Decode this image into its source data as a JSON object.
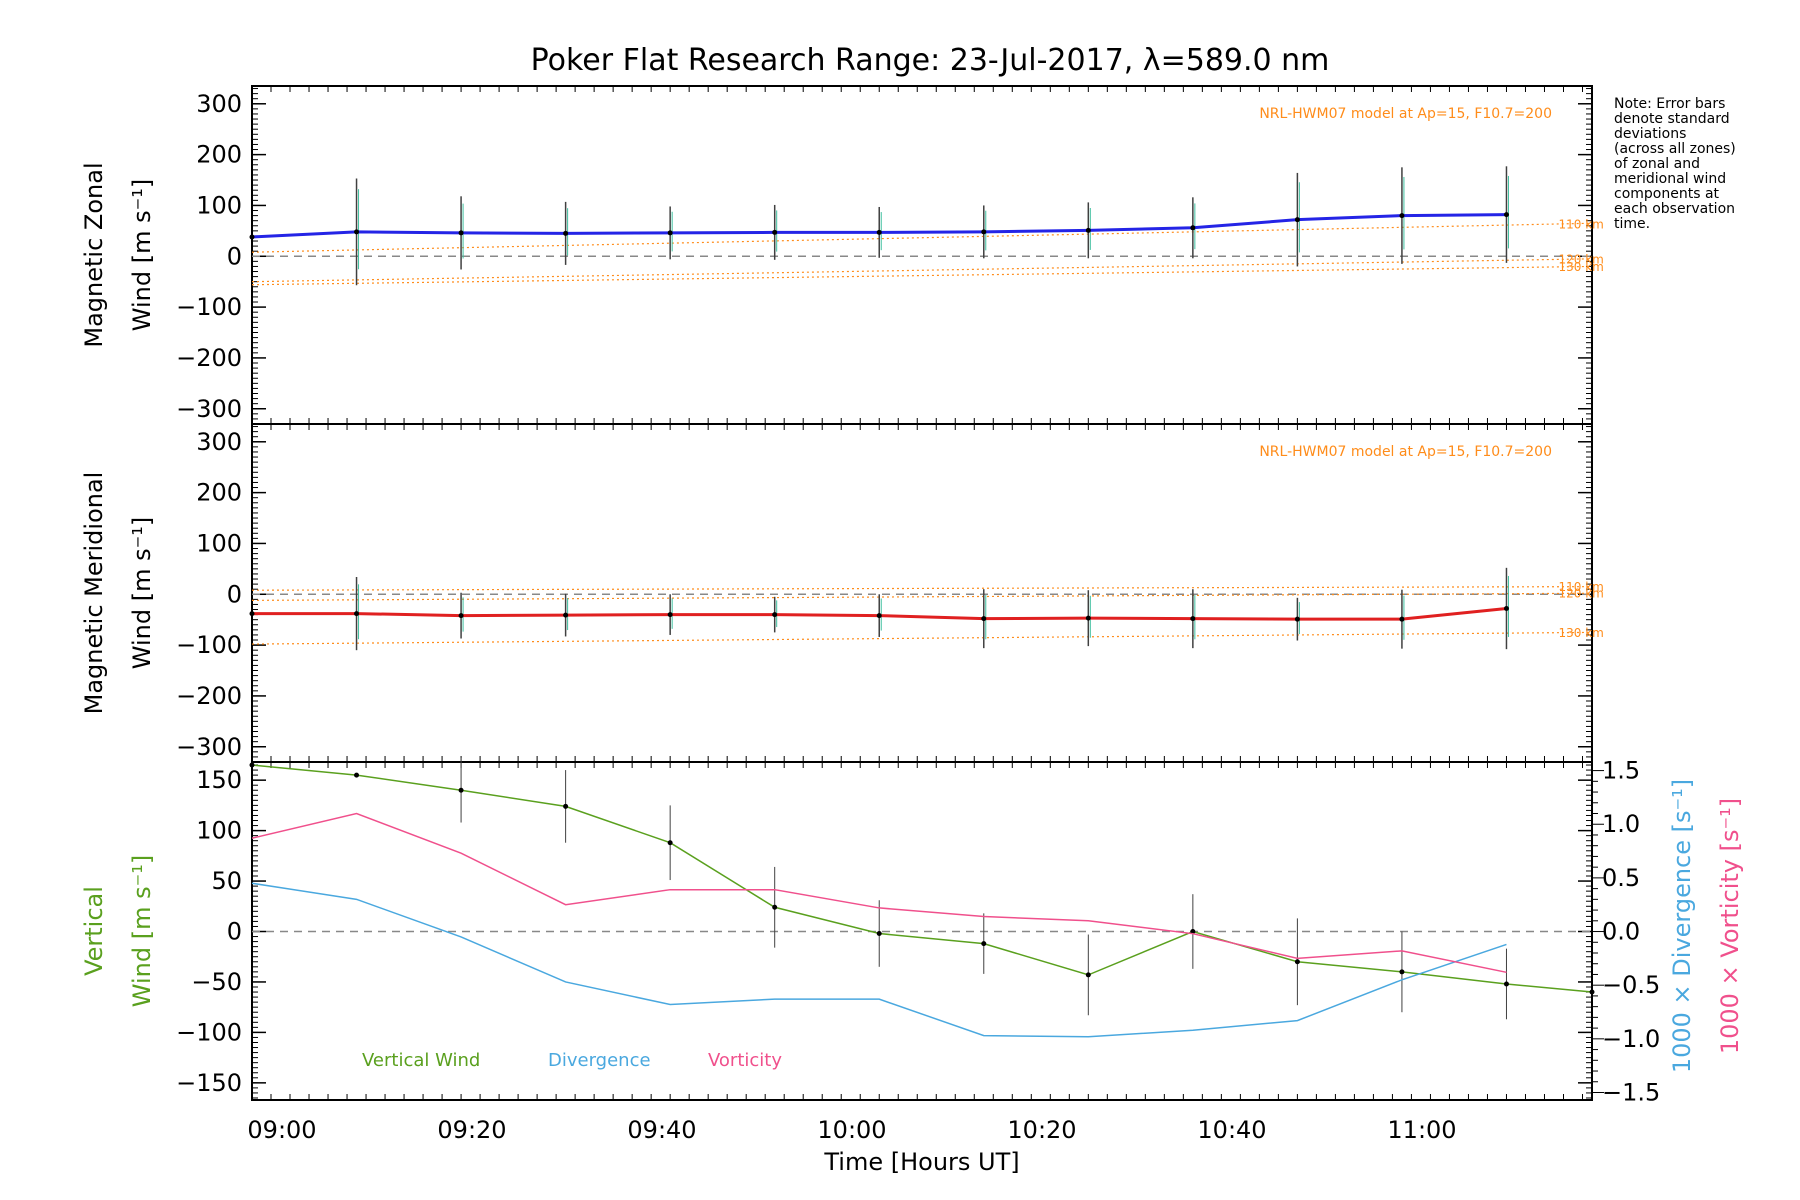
{
  "title": "Poker Flat Research Range: 23-Jul-2017, λ=589.0 nm",
  "x_axis": {
    "label": "Time [Hours UT]",
    "ticks": [
      "09:00",
      "09:20",
      "09:40",
      "10:00",
      "10:20",
      "10:40",
      "11:00"
    ]
  },
  "note": [
    "Note: Error bars",
    "denote standard",
    "deviations",
    "(across all zones)",
    "of zonal and",
    "meridional wind",
    "components at",
    "each observation",
    "time."
  ],
  "model_note": "NRL-HWM07 model at Ap=15, F10.7=200",
  "panels": {
    "zonal": {
      "ylabel_top": "Magnetic Zonal",
      "ylabel_bottom": "Wind [m s⁻¹]"
    },
    "meridional": {
      "ylabel_top": "Magnetic Meridional",
      "ylabel_bottom": "Wind [m s⁻¹]"
    },
    "vertical": {
      "ylabel_top": "Vertical",
      "ylabel_bottom": "Wind [m s⁻¹]",
      "right_label_divergence": "1000 × Divergence [s⁻¹]",
      "right_label_vorticity": "1000 × Vorticity [s⁻¹]",
      "legend": [
        "Vertical Wind",
        "Divergence",
        "Vorticity"
      ]
    }
  },
  "colors": {
    "zonal": "#2424e6",
    "meridional": "#e02020",
    "model": "#ff8c1a",
    "vertical": "#5aa01e",
    "divergence": "#4aa8df",
    "vorticity": "#f0508c",
    "errorbar": "#404040",
    "zero": "#888888"
  },
  "chart_data": [
    {
      "type": "line",
      "title": "Poker Flat Research Range: 23-Jul-2017, λ=589.0 nm",
      "ylabel": "Magnetic Zonal Wind [m s⁻¹]",
      "ylim": [
        -330,
        335
      ],
      "yticks": [
        -300,
        -200,
        -100,
        0,
        100,
        200,
        300
      ],
      "xlim": [
        "08:57",
        "11:18"
      ],
      "grid": false,
      "series": [
        {
          "name": "",
          "x": [
            "08:57",
            "09:08",
            "09:19",
            "09:30",
            "09:41",
            "09:52",
            "10:03",
            "10:14",
            "10:25",
            "10:36",
            "10:47",
            "10:58",
            "11:09"
          ],
          "values": [
            38,
            48,
            46,
            45,
            46,
            47,
            47,
            48,
            51,
            56,
            72,
            80,
            82
          ],
          "errors": [
            0,
            105,
            72,
            62,
            52,
            54,
            50,
            52,
            55,
            60,
            92,
            95,
            95
          ]
        }
      ],
      "model_lines": [
        {
          "name": "110 km",
          "start": 8,
          "end": 65
        },
        {
          "name": "120 km",
          "start": -50,
          "end": -5
        },
        {
          "name": "130 km",
          "start": -56,
          "end": -20
        }
      ]
    },
    {
      "type": "line",
      "ylabel": "Magnetic Meridional Wind [m s⁻¹]",
      "ylim": [
        -330,
        335
      ],
      "yticks": [
        -300,
        -200,
        -100,
        0,
        100,
        200,
        300
      ],
      "xlim": [
        "08:57",
        "11:18"
      ],
      "grid": false,
      "series": [
        {
          "name": "",
          "x": [
            "08:57",
            "09:08",
            "09:19",
            "09:30",
            "09:41",
            "09:52",
            "10:03",
            "10:14",
            "10:25",
            "10:36",
            "10:47",
            "10:58",
            "11:09"
          ],
          "values": [
            -38,
            -38,
            -42,
            -41,
            -40,
            -40,
            -42,
            -48,
            -47,
            -48,
            -49,
            -49,
            -28
          ],
          "errors": [
            0,
            72,
            45,
            42,
            40,
            35,
            42,
            58,
            55,
            58,
            42,
            58,
            80
          ]
        }
      ],
      "model_lines": [
        {
          "name": "110 km",
          "start": 8,
          "end": 15
        },
        {
          "name": "120 km",
          "start": -12,
          "end": 2
        },
        {
          "name": "130 km",
          "start": -98,
          "end": -75
        }
      ]
    },
    {
      "type": "line",
      "ylabel": "Vertical Wind [m s⁻¹]",
      "ylim": [
        -167,
        168
      ],
      "yticks": [
        -150,
        -100,
        -50,
        0,
        50,
        100,
        150
      ],
      "y2label": "1000 × Divergence [s⁻¹] / 1000 × Vorticity [s⁻¹]",
      "y2lim": [
        -1.57,
        1.58
      ],
      "y2ticks": [
        "-1.5",
        "-1.0",
        "-0.5",
        "0.0",
        "0.5",
        "1.0",
        "1.5"
      ],
      "xlim": [
        "08:57",
        "11:18"
      ],
      "grid": false,
      "series": [
        {
          "name": "Vertical Wind",
          "x": [
            "08:57",
            "09:08",
            "09:19",
            "09:30",
            "09:41",
            "09:52",
            "10:03",
            "10:14",
            "10:25",
            "10:36",
            "10:47",
            "10:58",
            "11:09",
            "11:18"
          ],
          "values": [
            165,
            155,
            140,
            124,
            88,
            24,
            -2,
            -12,
            -43,
            0,
            -30,
            -40,
            -52,
            -60
          ],
          "errors": [
            0,
            0,
            32,
            36,
            37,
            40,
            33,
            30,
            40,
            37,
            43,
            40,
            35,
            0
          ]
        },
        {
          "name": "Divergence",
          "axis": "right",
          "x": [
            "08:57",
            "09:08",
            "09:19",
            "09:30",
            "09:41",
            "09:52",
            "10:03",
            "10:14",
            "10:25",
            "10:36",
            "10:47",
            "10:58",
            "11:09"
          ],
          "values": [
            0.45,
            0.3,
            -0.05,
            -0.47,
            -0.68,
            -0.63,
            -0.63,
            -0.97,
            -0.98,
            -0.92,
            -0.83,
            -0.45,
            -0.12
          ]
        },
        {
          "name": "Vorticity",
          "axis": "right",
          "x": [
            "08:57",
            "09:08",
            "09:19",
            "09:30",
            "09:41",
            "09:52",
            "10:03",
            "10:14",
            "10:25",
            "10:36",
            "10:47",
            "10:58",
            "11:09"
          ],
          "values": [
            0.87,
            1.1,
            0.73,
            0.25,
            0.39,
            0.39,
            0.22,
            0.14,
            0.1,
            -0.02,
            -0.25,
            -0.18,
            -0.38
          ]
        }
      ]
    }
  ]
}
